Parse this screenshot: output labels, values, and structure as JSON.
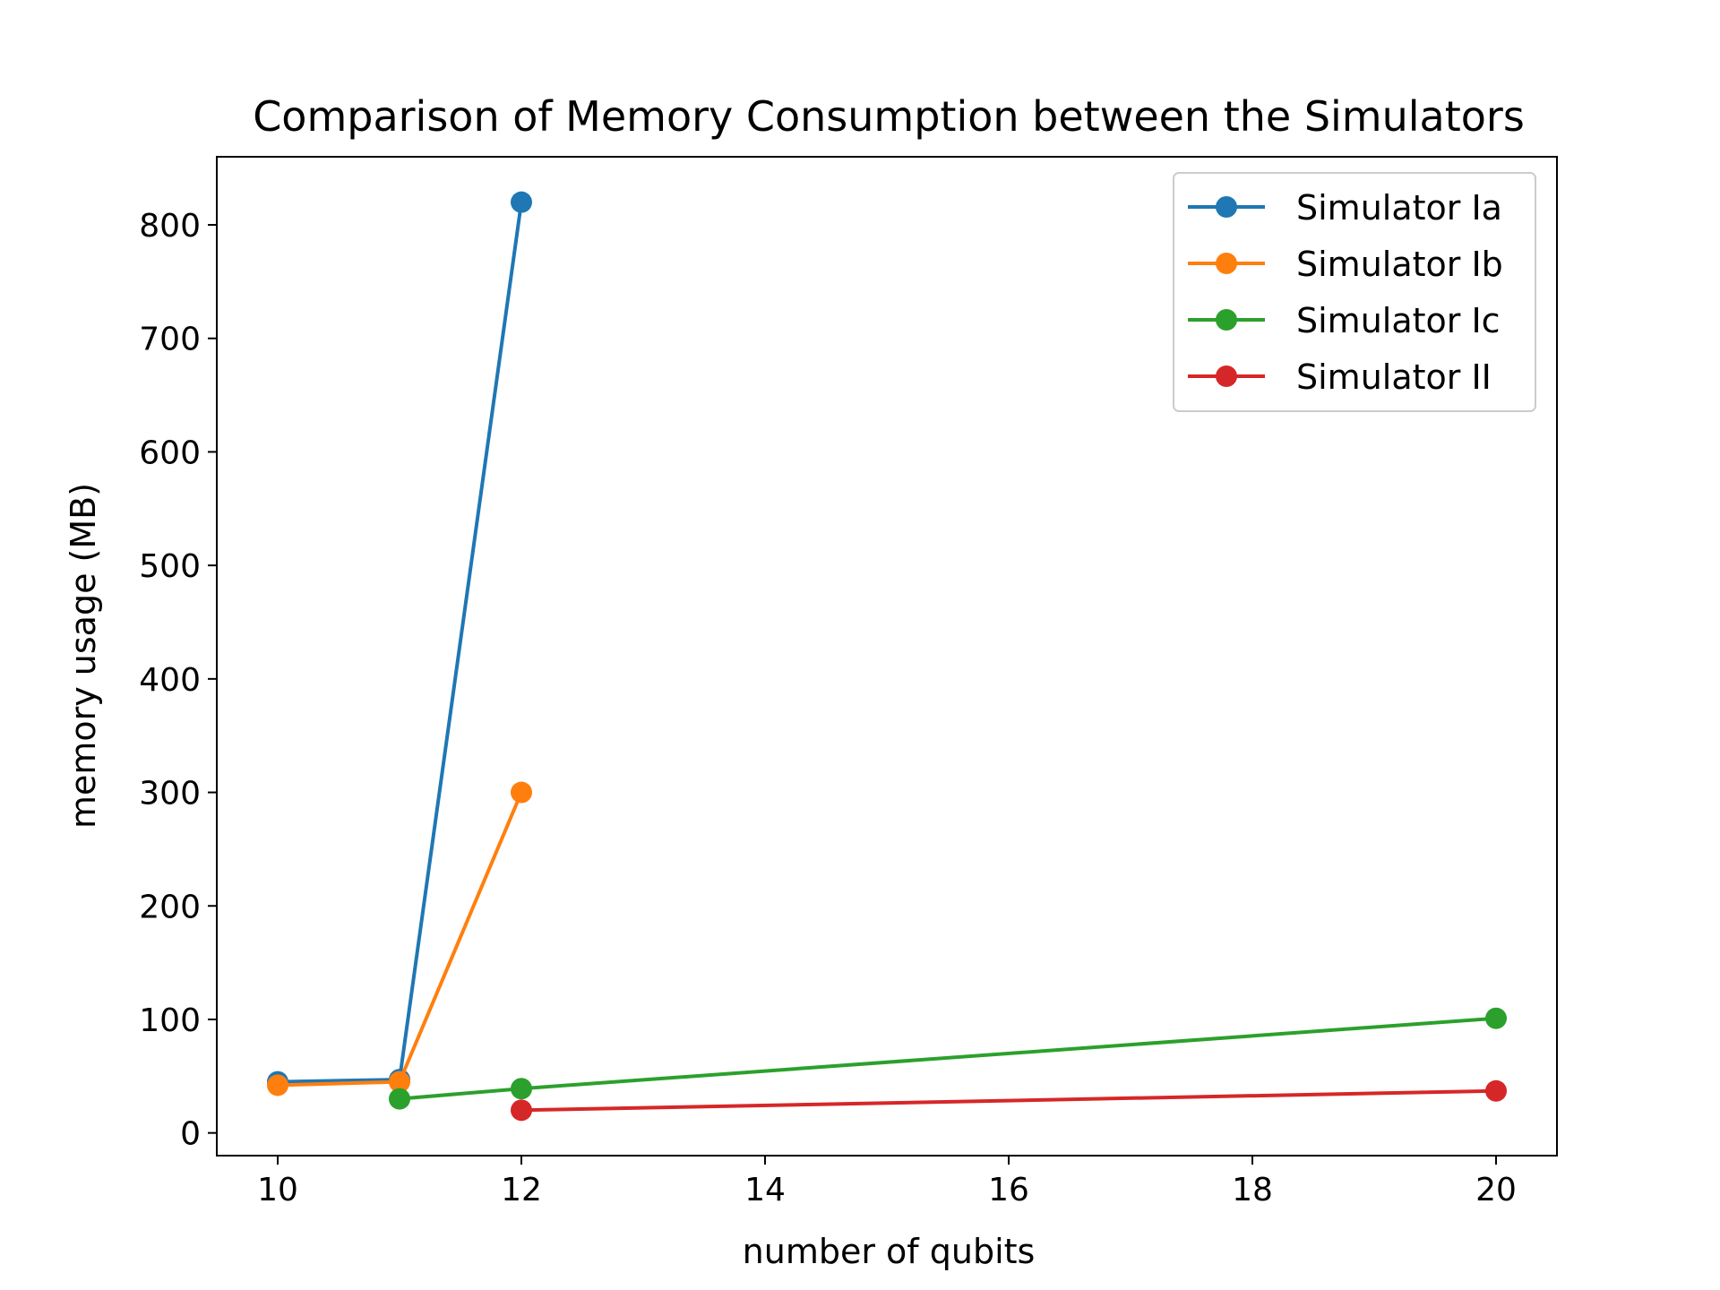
{
  "chart_data": {
    "type": "line",
    "title": "Comparison of Memory Consumption between the Simulators",
    "xlabel": "number of qubits",
    "ylabel": "memory usage (MB)",
    "xlim": [
      9.5,
      20.5
    ],
    "ylim": [
      -20,
      860
    ],
    "xticks": [
      10,
      12,
      14,
      16,
      18,
      20
    ],
    "yticks": [
      0,
      100,
      200,
      300,
      400,
      500,
      600,
      700,
      800
    ],
    "grid": false,
    "legend_position": "top-right",
    "series": [
      {
        "name": "Simulator Ia",
        "color": "#1f77b4",
        "x": [
          10,
          11,
          12
        ],
        "y": [
          45,
          47,
          820
        ]
      },
      {
        "name": "Simulator Ib",
        "color": "#ff7f0e",
        "x": [
          10,
          11,
          12
        ],
        "y": [
          42,
          45,
          300
        ]
      },
      {
        "name": "Simulator Ic",
        "color": "#2ca02c",
        "x": [
          11,
          12,
          20
        ],
        "y": [
          30,
          39,
          101
        ]
      },
      {
        "name": "Simulator II",
        "color": "#d62728",
        "x": [
          12,
          20
        ],
        "y": [
          20,
          37
        ]
      }
    ]
  }
}
